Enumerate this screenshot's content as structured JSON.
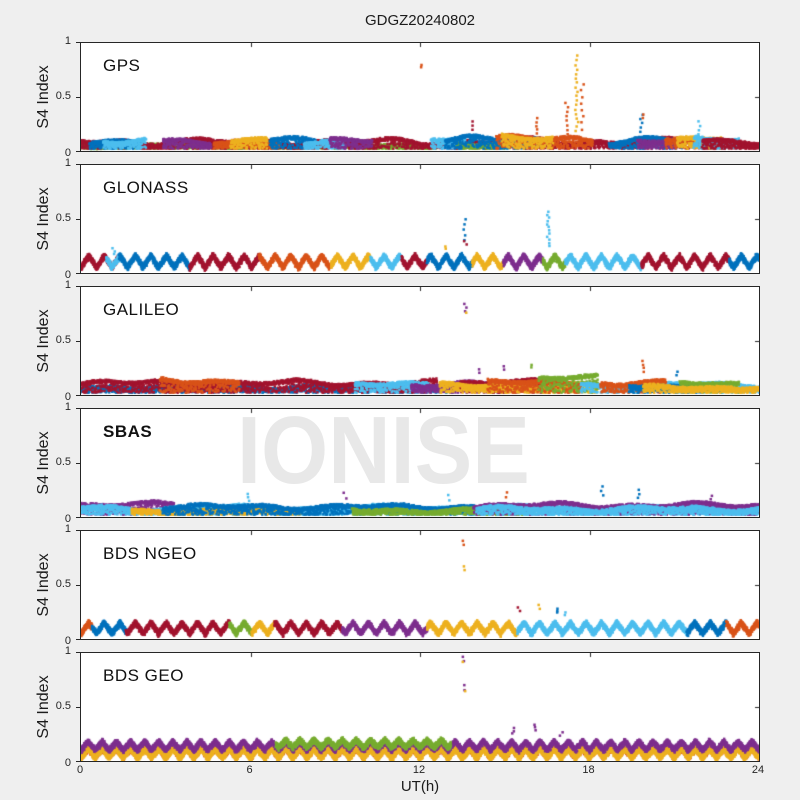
{
  "figure": {
    "title": "GDGZ20240802",
    "watermark": "IONISE"
  },
  "axes": {
    "xlabel": "UT(h)",
    "ylabel": "S4 Index",
    "xticks": [
      "0",
      "6",
      "12",
      "18",
      "24"
    ],
    "yticks": [
      "1",
      "0.5",
      "0"
    ],
    "xlim": [
      0,
      24
    ],
    "ylim": [
      0,
      1
    ]
  },
  "colors": {
    "background": "#efefef",
    "plot_bg": "#ffffff",
    "axis": "#262626",
    "text": "#1c1c1c",
    "watermark": "#e8e8e8",
    "palette": {
      "blue": "#0072BD",
      "orange": "#D95319",
      "yellow": "#EDB120",
      "purple": "#7E2F8E",
      "green": "#77AC30",
      "cyan": "#4DBEEE",
      "darkred": "#A2142F"
    }
  },
  "chart_data": {
    "type": "scatter",
    "title": "GDGZ20240802",
    "xlabel": "UT(h)",
    "ylabel": "S4 Index",
    "xlim": [
      0,
      24
    ],
    "ylim": [
      0,
      1
    ],
    "grid": false,
    "legend": "none",
    "panels": [
      {
        "label": "GPS",
        "bold": false,
        "layers": [
          {
            "c": "green",
            "t0": 0,
            "t1": 12.6,
            "base": 0.03,
            "amp": 0.05
          },
          {
            "c": "darkred",
            "t0": 0,
            "t1": 24,
            "base": 0.05,
            "amp": 0.07
          },
          {
            "c": "blue",
            "t0": 0.3,
            "t1": 2.1,
            "base": 0.06,
            "amp": 0.07
          },
          {
            "c": "cyan",
            "t0": 0.8,
            "t1": 2.3,
            "base": 0.07,
            "amp": 0.06
          },
          {
            "c": "purple",
            "t0": 2.9,
            "t1": 4.6,
            "base": 0.06,
            "amp": 0.07
          },
          {
            "c": "orange",
            "t0": 4.7,
            "t1": 7.0,
            "base": 0.05,
            "amp": 0.06
          },
          {
            "c": "yellow",
            "t0": 5.3,
            "t1": 6.6,
            "base": 0.06,
            "amp": 0.06
          },
          {
            "c": "blue",
            "t0": 6.7,
            "t1": 8.3,
            "base": 0.06,
            "amp": 0.07
          },
          {
            "c": "cyan",
            "t0": 7.9,
            "t1": 9.3,
            "base": 0.06,
            "amp": 0.06
          },
          {
            "c": "purple",
            "t0": 8.8,
            "t1": 10.3,
            "base": 0.06,
            "amp": 0.06
          },
          {
            "c": "cyan",
            "t0": 12.4,
            "t1": 13.6,
            "base": 0.07,
            "amp": 0.06
          },
          {
            "c": "green",
            "t0": 13.3,
            "t1": 15.2,
            "base": 0.04,
            "amp": 0.05
          },
          {
            "c": "blue",
            "t0": 12.9,
            "t1": 16.3,
            "base": 0.06,
            "amp": 0.08
          },
          {
            "c": "orange",
            "t0": 14.7,
            "t1": 18.1,
            "base": 0.07,
            "amp": 0.08
          },
          {
            "c": "yellow",
            "t0": 14.9,
            "t1": 16.7,
            "base": 0.08,
            "amp": 0.07
          },
          {
            "c": "blue",
            "t0": 18.7,
            "t1": 21.3,
            "base": 0.06,
            "amp": 0.07
          },
          {
            "c": "purple",
            "t0": 19.7,
            "t1": 21.1,
            "base": 0.07,
            "amp": 0.06
          },
          {
            "c": "orange",
            "t0": 20.7,
            "t1": 22.3,
            "base": 0.08,
            "amp": 0.06
          },
          {
            "c": "yellow",
            "t0": 21.1,
            "t1": 22.7,
            "base": 0.08,
            "amp": 0.06
          },
          {
            "c": "cyan",
            "t0": 21.7,
            "t1": 23.3,
            "base": 0.07,
            "amp": 0.06
          },
          {
            "c": "darkred",
            "t0": 22.0,
            "t1": 24,
            "base": 0.06,
            "amp": 0.07
          }
        ],
        "spikes": [
          {
            "t": 12.05,
            "lo": 0.78,
            "hi": 0.8,
            "color": "orange",
            "n": 2
          },
          {
            "t": 13.9,
            "lo": 0.2,
            "hi": 0.27,
            "color": "darkred",
            "n": 3
          },
          {
            "t": 16.1,
            "lo": 0.16,
            "hi": 0.3,
            "color": "orange",
            "n": 5
          },
          {
            "t": 17.2,
            "lo": 0.15,
            "hi": 0.45,
            "color": "orange",
            "n": 8
          },
          {
            "t": 17.55,
            "lo": 0.18,
            "hi": 0.88,
            "color": "yellow",
            "n": 18
          },
          {
            "t": 17.75,
            "lo": 0.2,
            "hi": 0.62,
            "color": "orange",
            "n": 8
          },
          {
            "t": 19.85,
            "lo": 0.18,
            "hi": 0.33,
            "color": "blue",
            "n": 5
          },
          {
            "t": 19.9,
            "lo": 0.3,
            "hi": 0.34,
            "color": "orange",
            "n": 2
          },
          {
            "t": 21.9,
            "lo": 0.16,
            "hi": 0.27,
            "color": "cyan",
            "n": 4
          }
        ]
      },
      {
        "label": "GLONASS",
        "bold": false,
        "wave": {
          "center": 0.12,
          "amp": 0.055,
          "period": 0.55
        },
        "layers": [
          {
            "c": "darkred",
            "t0": 0,
            "t1": 1.35
          },
          {
            "c": "cyan",
            "t0": 0.9,
            "t1": 1.45
          },
          {
            "c": "blue",
            "t0": 1.35,
            "t1": 3.85
          },
          {
            "c": "darkred",
            "t0": 3.85,
            "t1": 6.3
          },
          {
            "c": "orange",
            "t0": 6.3,
            "t1": 8.85
          },
          {
            "c": "yellow",
            "t0": 8.85,
            "t1": 10.25
          },
          {
            "c": "cyan",
            "t0": 10.25,
            "t1": 11.35
          },
          {
            "c": "darkred",
            "t0": 11.35,
            "t1": 12.25
          },
          {
            "c": "blue",
            "t0": 12.25,
            "t1": 13.85
          },
          {
            "c": "yellow",
            "t0": 13.85,
            "t1": 14.95
          },
          {
            "c": "purple",
            "t0": 14.95,
            "t1": 16.35
          },
          {
            "c": "green",
            "t0": 16.35,
            "t1": 17.15
          },
          {
            "c": "cyan",
            "t0": 17.15,
            "t1": 19.85
          },
          {
            "c": "darkred",
            "t0": 19.85,
            "t1": 22.95
          },
          {
            "c": "blue",
            "t0": 22.95,
            "t1": 24
          }
        ],
        "spikes": [
          {
            "t": 1.15,
            "lo": 0.18,
            "hi": 0.23,
            "color": "cyan",
            "n": 3
          },
          {
            "t": 12.95,
            "lo": 0.22,
            "hi": 0.25,
            "color": "yellow",
            "n": 2
          },
          {
            "t": 13.6,
            "lo": 0.3,
            "hi": 0.5,
            "color": "blue",
            "n": 5
          },
          {
            "t": 13.6,
            "lo": 0.26,
            "hi": 0.3,
            "color": "darkred",
            "n": 2
          },
          {
            "t": 16.55,
            "lo": 0.25,
            "hi": 0.57,
            "color": "cyan",
            "n": 12
          }
        ]
      },
      {
        "label": "GALILEO",
        "bold": false,
        "layers": [
          {
            "c": "blue",
            "t0": 0,
            "t1": 13.2,
            "base": 0.05,
            "amp": 0.05
          },
          {
            "c": "darkred",
            "t0": 0,
            "t1": 12.6,
            "base": 0.08,
            "amp": 0.06
          },
          {
            "c": "orange",
            "t0": 2.8,
            "t1": 5.6,
            "base": 0.1,
            "amp": 0.06
          },
          {
            "c": "cyan",
            "t0": 9.7,
            "t1": 12.3,
            "base": 0.09,
            "amp": 0.04
          },
          {
            "c": "purple",
            "t0": 11.7,
            "t1": 16.3,
            "base": 0.06,
            "amp": 0.06
          },
          {
            "c": "darkred",
            "t0": 13.4,
            "t1": 16.6,
            "base": 0.09,
            "amp": 0.05
          },
          {
            "c": "yellow",
            "t0": 12.7,
            "t1": 18.3,
            "base": 0.06,
            "amp": 0.05
          },
          {
            "c": "orange",
            "t0": 14.4,
            "t1": 17.7,
            "base": 0.09,
            "amp": 0.05
          },
          {
            "c": "green",
            "t0": 16.2,
            "t1": 18.3,
            "base": 0.15,
            "amp": 0.035
          },
          {
            "c": "cyan",
            "t0": 17.7,
            "t1": 24,
            "base": 0.07,
            "amp": 0.05
          },
          {
            "c": "orange",
            "t0": 18.4,
            "t1": 20.7,
            "base": 0.09,
            "amp": 0.05
          },
          {
            "c": "blue",
            "t0": 19.4,
            "t1": 22.6,
            "base": 0.06,
            "amp": 0.04
          },
          {
            "c": "green",
            "t0": 21.2,
            "t1": 23.3,
            "base": 0.09,
            "amp": 0.035
          },
          {
            "c": "yellow",
            "t0": 19.9,
            "t1": 24,
            "base": 0.05,
            "amp": 0.04
          }
        ],
        "spikes": [
          {
            "t": 13.6,
            "lo": 0.78,
            "hi": 0.84,
            "color": "purple",
            "n": 3
          },
          {
            "t": 13.6,
            "lo": 0.755,
            "hi": 0.775,
            "color": "yellow",
            "n": 1
          },
          {
            "t": 14.1,
            "lo": 0.21,
            "hi": 0.24,
            "color": "purple",
            "n": 2
          },
          {
            "t": 15.0,
            "lo": 0.24,
            "hi": 0.27,
            "color": "purple",
            "n": 2
          },
          {
            "t": 15.9,
            "lo": 0.25,
            "hi": 0.28,
            "color": "green",
            "n": 2
          },
          {
            "t": 19.9,
            "lo": 0.22,
            "hi": 0.31,
            "color": "orange",
            "n": 4
          },
          {
            "t": 21.1,
            "lo": 0.18,
            "hi": 0.22,
            "color": "blue",
            "n": 2
          }
        ]
      },
      {
        "label": "SBAS",
        "bold": true,
        "watermark": true,
        "layers": [
          {
            "c": "purple",
            "t0": 0,
            "t1": 3.3,
            "base": 0.09,
            "amp": 0.05
          },
          {
            "c": "cyan",
            "t0": 0,
            "t1": 24,
            "base": 0.05,
            "amp": 0.06
          },
          {
            "c": "yellow",
            "t0": 1.8,
            "t1": 7.8,
            "base": 0.04,
            "amp": 0.03
          },
          {
            "c": "blue",
            "t0": 2.9,
            "t1": 14.0,
            "base": 0.07,
            "amp": 0.05
          },
          {
            "c": "green",
            "t0": 9.6,
            "t1": 15.8,
            "base": 0.04,
            "amp": 0.04
          },
          {
            "c": "purple",
            "t0": 13.9,
            "t1": 24,
            "base": 0.08,
            "amp": 0.055
          },
          {
            "c": "cyan",
            "t0": 14.0,
            "t1": 24,
            "base": 0.05,
            "amp": 0.05
          }
        ],
        "spikes": [
          {
            "t": 5.9,
            "lo": 0.15,
            "hi": 0.21,
            "color": "cyan",
            "n": 3
          },
          {
            "t": 9.35,
            "lo": 0.17,
            "hi": 0.23,
            "color": "purple",
            "n": 2
          },
          {
            "t": 13.0,
            "lo": 0.15,
            "hi": 0.2,
            "color": "cyan",
            "n": 2
          },
          {
            "t": 15.05,
            "lo": 0.18,
            "hi": 0.23,
            "color": "orange",
            "n": 2
          },
          {
            "t": 18.45,
            "lo": 0.2,
            "hi": 0.28,
            "color": "blue",
            "n": 3
          },
          {
            "t": 19.75,
            "lo": 0.18,
            "hi": 0.25,
            "color": "blue",
            "n": 3
          },
          {
            "t": 22.3,
            "lo": 0.17,
            "hi": 0.2,
            "color": "purple",
            "n": 2
          }
        ]
      },
      {
        "label": "BDS NGEO",
        "bold": false,
        "wave": {
          "center": 0.115,
          "amp": 0.05,
          "period": 0.55
        },
        "layers": [
          {
            "c": "orange",
            "t0": 0,
            "t1": 0.4
          },
          {
            "c": "blue",
            "t0": 0.4,
            "t1": 1.6
          },
          {
            "c": "darkred",
            "t0": 1.6,
            "t1": 5.25
          },
          {
            "c": "green",
            "t0": 5.25,
            "t1": 6.05
          },
          {
            "c": "yellow",
            "t0": 6.05,
            "t1": 6.85
          },
          {
            "c": "darkred",
            "t0": 6.85,
            "t1": 9.25
          },
          {
            "c": "purple",
            "t0": 9.25,
            "t1": 12.25
          },
          {
            "c": "yellow",
            "t0": 12.25,
            "t1": 15.45
          },
          {
            "c": "cyan",
            "t0": 15.45,
            "t1": 21.45
          },
          {
            "c": "blue",
            "t0": 21.45,
            "t1": 22.85
          },
          {
            "c": "orange",
            "t0": 22.85,
            "t1": 24
          }
        ],
        "spikes": [
          {
            "t": 13.55,
            "lo": 0.87,
            "hi": 0.91,
            "color": "orange",
            "n": 2
          },
          {
            "t": 13.55,
            "lo": 0.64,
            "hi": 0.67,
            "color": "yellow",
            "n": 2
          },
          {
            "t": 15.5,
            "lo": 0.26,
            "hi": 0.29,
            "color": "darkred",
            "n": 2
          },
          {
            "t": 16.2,
            "lo": 0.28,
            "hi": 0.31,
            "color": "yellow",
            "n": 2
          },
          {
            "t": 16.9,
            "lo": 0.24,
            "hi": 0.28,
            "color": "blue",
            "n": 3
          },
          {
            "t": 17.15,
            "lo": 0.22,
            "hi": 0.25,
            "color": "cyan",
            "n": 2
          }
        ]
      },
      {
        "label": "BDS GEO",
        "bold": false,
        "wave": {
          "center": 0.12,
          "amp": 0.045,
          "period": 0.5
        },
        "layers": [
          {
            "c": "orange",
            "t0": 0,
            "t1": 24,
            "center": 0.09,
            "amp": 0.04
          },
          {
            "c": "yellow",
            "t0": 0,
            "t1": 24,
            "center": 0.085,
            "amp": 0.045
          },
          {
            "c": "purple",
            "t0": 0,
            "t1": 24,
            "center": 0.155,
            "amp": 0.04
          },
          {
            "c": "green",
            "t0": 6.9,
            "t1": 13.1,
            "center": 0.175,
            "amp": 0.035
          }
        ],
        "spikes": [
          {
            "t": 13.55,
            "lo": 0.93,
            "hi": 0.97,
            "color": "purple",
            "n": 2
          },
          {
            "t": 13.55,
            "lo": 0.9,
            "hi": 0.925,
            "color": "yellow",
            "n": 1
          },
          {
            "t": 13.55,
            "lo": 0.66,
            "hi": 0.7,
            "color": "purple",
            "n": 2
          },
          {
            "t": 13.55,
            "lo": 0.635,
            "hi": 0.655,
            "color": "yellow",
            "n": 1
          },
          {
            "t": 15.3,
            "lo": 0.25,
            "hi": 0.31,
            "color": "purple",
            "n": 3
          },
          {
            "t": 16.1,
            "lo": 0.28,
            "hi": 0.34,
            "color": "purple",
            "n": 3
          },
          {
            "t": 17.0,
            "lo": 0.24,
            "hi": 0.27,
            "color": "purple",
            "n": 2
          }
        ]
      }
    ]
  }
}
